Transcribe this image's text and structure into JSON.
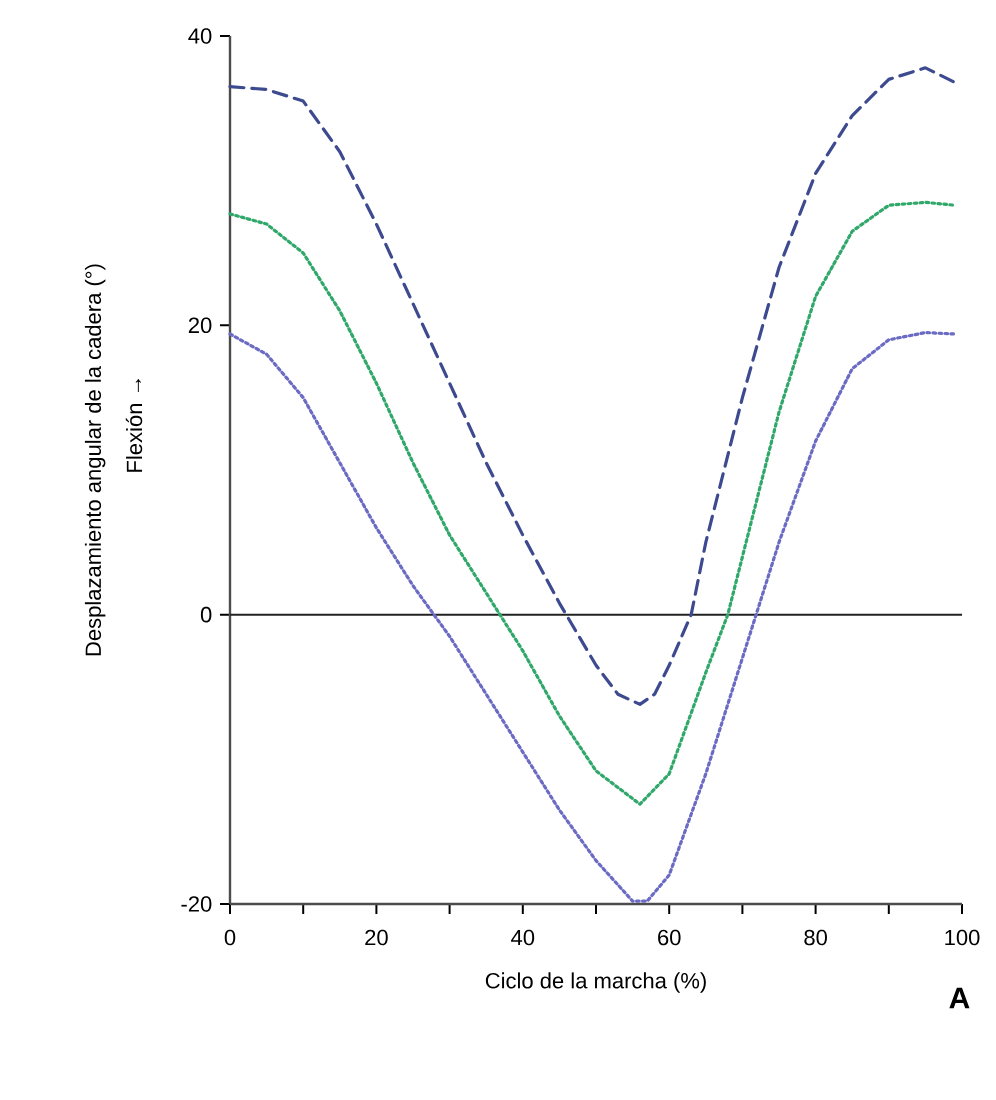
{
  "chart_data": {
    "type": "line",
    "xlabel": "Ciclo de la marcha (%)",
    "ylabel": "Desplazamiento angular de la cadera (°)",
    "annotations": [
      "Flexión →",
      "A"
    ],
    "xlim": [
      0,
      100
    ],
    "ylim": [
      -20,
      40
    ],
    "xticks": [
      0,
      {
        "value": 10,
        "label": null
      },
      20,
      {
        "value": 30,
        "label": null
      },
      40,
      {
        "value": 50,
        "label": null
      },
      60,
      {
        "value": 70,
        "label": null
      },
      80,
      {
        "value": 90,
        "label": null
      },
      100
    ],
    "yticks": [
      -20,
      0,
      20,
      40
    ],
    "grid": false,
    "marker": "none",
    "ref_lines": [
      {
        "axis": "y",
        "value": 0,
        "color": "#222222",
        "line_style": "solid"
      }
    ],
    "series": [
      {
        "color": "#3d4a8f",
        "line_style": "dashed",
        "x": [
          0,
          5,
          10,
          15,
          20,
          25,
          30,
          35,
          40,
          45,
          50,
          53,
          56,
          58,
          60,
          63,
          65,
          70,
          75,
          80,
          85,
          90,
          95,
          99
        ],
        "values": [
          36.5,
          36.3,
          35.5,
          32,
          27,
          21.5,
          16,
          10.5,
          5.5,
          0.8,
          -3.5,
          -5.5,
          -6.2,
          -5.5,
          -3.5,
          0,
          5,
          15,
          24,
          30.5,
          34.5,
          37,
          37.8,
          36.8
        ]
      },
      {
        "color": "#2fa86a",
        "line_style": "dotted",
        "x": [
          0,
          5,
          10,
          15,
          20,
          25,
          30,
          35,
          40,
          45,
          50,
          56,
          60,
          65,
          68,
          70,
          75,
          80,
          85,
          90,
          95,
          99
        ],
        "values": [
          27.7,
          27,
          25,
          21,
          16,
          10.5,
          5.5,
          1.5,
          -2.5,
          -7,
          -10.8,
          -13.1,
          -11,
          -4,
          0,
          4,
          14,
          22,
          26.5,
          28.3,
          28.5,
          28.3
        ]
      },
      {
        "color": "#6b6bc4",
        "line_style": "dotted",
        "x": [
          0,
          5,
          10,
          15,
          20,
          25,
          30,
          35,
          40,
          45,
          50,
          55,
          57,
          60,
          65,
          70,
          75,
          80,
          85,
          90,
          95,
          99
        ],
        "values": [
          19.4,
          18,
          15,
          10.5,
          6,
          2,
          -1.5,
          -5.5,
          -9.5,
          -13.5,
          -17,
          -19.8,
          -19.8,
          -18,
          -11,
          -3,
          5,
          12,
          17,
          19,
          19.5,
          19.4
        ]
      }
    ]
  }
}
